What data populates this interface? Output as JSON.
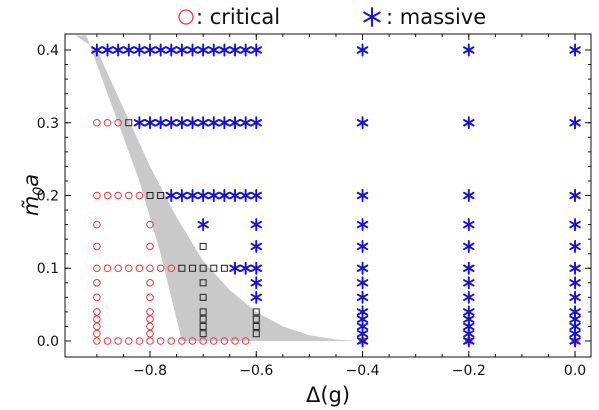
{
  "chart_data": {
    "type": "scatter",
    "title": "",
    "xlabel": "Δ(g)",
    "ylabel_main": "m̃",
    "ylabel_sub": "0",
    "ylabel_suffix": "a",
    "xlim": [
      -0.96,
      0.03
    ],
    "ylim": [
      -0.022,
      0.422
    ],
    "xticks": [
      {
        "value": -0.8,
        "label": "−0.8"
      },
      {
        "value": -0.6,
        "label": "−0.6"
      },
      {
        "value": -0.4,
        "label": "−0.4"
      },
      {
        "value": -0.2,
        "label": "−0.2"
      },
      {
        "value": 0.0,
        "label": "0.0"
      }
    ],
    "yticks": [
      {
        "value": 0.0,
        "label": "0.0"
      },
      {
        "value": 0.1,
        "label": "0.1"
      },
      {
        "value": 0.2,
        "label": "0.2"
      },
      {
        "value": 0.3,
        "label": "0.3"
      },
      {
        "value": 0.4,
        "label": "0.4"
      }
    ],
    "legend": {
      "position": "top",
      "entries": [
        {
          "marker": "circle",
          "label": " : critical"
        },
        {
          "marker": "star",
          "label": " : massive"
        }
      ]
    },
    "colors": {
      "critical": "#e8393a",
      "massive": "#1212d8",
      "intermediate": "#222222",
      "band": "#c9c9c9"
    },
    "band_region": {
      "description_upper": [
        [
          -0.94,
          0.42
        ],
        [
          -0.9,
          0.4
        ],
        [
          -0.85,
          0.32
        ],
        [
          -0.8,
          0.24
        ],
        [
          -0.75,
          0.17
        ],
        [
          -0.7,
          0.11
        ],
        [
          -0.65,
          0.07
        ],
        [
          -0.6,
          0.04
        ],
        [
          -0.55,
          0.02
        ],
        [
          -0.5,
          0.008
        ],
        [
          -0.45,
          0.002
        ],
        [
          -0.41,
          0.0
        ]
      ],
      "description_lower": [
        [
          -0.41,
          0.0
        ],
        [
          -0.5,
          0.0
        ],
        [
          -0.6,
          0.0
        ],
        [
          -0.74,
          0.0
        ],
        [
          -0.75,
          0.03
        ],
        [
          -0.78,
          0.12
        ],
        [
          -0.82,
          0.22
        ],
        [
          -0.86,
          0.3
        ],
        [
          -0.9,
          0.38
        ],
        [
          -0.92,
          0.42
        ]
      ]
    },
    "series": [
      {
        "marker": "circle",
        "role": "critical",
        "points": [
          [
            -0.9,
            0.0
          ],
          [
            -0.88,
            0.0
          ],
          [
            -0.86,
            0.0
          ],
          [
            -0.84,
            0.0
          ],
          [
            -0.82,
            0.0
          ],
          [
            -0.8,
            0.0
          ],
          [
            -0.78,
            0.0
          ],
          [
            -0.76,
            0.0
          ],
          [
            -0.74,
            0.0
          ],
          [
            -0.72,
            0.0
          ],
          [
            -0.7,
            0.0
          ],
          [
            -0.68,
            0.0
          ],
          [
            -0.66,
            0.0
          ],
          [
            -0.64,
            0.0
          ],
          [
            -0.62,
            0.0
          ],
          [
            -0.9,
            0.01
          ],
          [
            -0.9,
            0.02
          ],
          [
            -0.9,
            0.03
          ],
          [
            -0.9,
            0.04
          ],
          [
            -0.9,
            0.06
          ],
          [
            -0.9,
            0.08
          ],
          [
            -0.8,
            0.01
          ],
          [
            -0.8,
            0.02
          ],
          [
            -0.8,
            0.03
          ],
          [
            -0.8,
            0.04
          ],
          [
            -0.8,
            0.06
          ],
          [
            -0.8,
            0.08
          ],
          [
            -0.9,
            0.1
          ],
          [
            -0.88,
            0.1
          ],
          [
            -0.86,
            0.1
          ],
          [
            -0.84,
            0.1
          ],
          [
            -0.82,
            0.1
          ],
          [
            -0.8,
            0.1
          ],
          [
            -0.78,
            0.1
          ],
          [
            -0.76,
            0.1
          ],
          [
            -0.9,
            0.13
          ],
          [
            -0.8,
            0.13
          ],
          [
            -0.9,
            0.16
          ],
          [
            -0.8,
            0.16
          ],
          [
            -0.9,
            0.2
          ],
          [
            -0.88,
            0.2
          ],
          [
            -0.86,
            0.2
          ],
          [
            -0.84,
            0.2
          ],
          [
            -0.82,
            0.2
          ],
          [
            -0.9,
            0.3
          ],
          [
            -0.88,
            0.3
          ],
          [
            -0.86,
            0.3
          ],
          [
            -0.4,
            0.0
          ],
          [
            -0.2,
            0.0
          ],
          [
            0.0,
            0.0
          ]
        ]
      },
      {
        "marker": "square",
        "role": "intermediate",
        "points": [
          [
            -0.7,
            0.01
          ],
          [
            -0.7,
            0.02
          ],
          [
            -0.7,
            0.03
          ],
          [
            -0.7,
            0.04
          ],
          [
            -0.7,
            0.06
          ],
          [
            -0.7,
            0.08
          ],
          [
            -0.7,
            0.13
          ],
          [
            -0.6,
            0.01
          ],
          [
            -0.6,
            0.02
          ],
          [
            -0.6,
            0.03
          ],
          [
            -0.6,
            0.04
          ],
          [
            -0.74,
            0.1
          ],
          [
            -0.72,
            0.1
          ],
          [
            -0.7,
            0.1
          ],
          [
            -0.68,
            0.1
          ],
          [
            -0.66,
            0.1
          ],
          [
            -0.8,
            0.2
          ],
          [
            -0.78,
            0.2
          ],
          [
            -0.84,
            0.3
          ]
        ]
      },
      {
        "marker": "star",
        "role": "massive",
        "points": [
          [
            -0.9,
            0.4
          ],
          [
            -0.88,
            0.4
          ],
          [
            -0.86,
            0.4
          ],
          [
            -0.84,
            0.4
          ],
          [
            -0.82,
            0.4
          ],
          [
            -0.8,
            0.4
          ],
          [
            -0.78,
            0.4
          ],
          [
            -0.76,
            0.4
          ],
          [
            -0.74,
            0.4
          ],
          [
            -0.72,
            0.4
          ],
          [
            -0.7,
            0.4
          ],
          [
            -0.68,
            0.4
          ],
          [
            -0.66,
            0.4
          ],
          [
            -0.64,
            0.4
          ],
          [
            -0.62,
            0.4
          ],
          [
            -0.6,
            0.4
          ],
          [
            -0.82,
            0.3
          ],
          [
            -0.8,
            0.3
          ],
          [
            -0.78,
            0.3
          ],
          [
            -0.76,
            0.3
          ],
          [
            -0.74,
            0.3
          ],
          [
            -0.72,
            0.3
          ],
          [
            -0.7,
            0.3
          ],
          [
            -0.68,
            0.3
          ],
          [
            -0.66,
            0.3
          ],
          [
            -0.64,
            0.3
          ],
          [
            -0.62,
            0.3
          ],
          [
            -0.6,
            0.3
          ],
          [
            -0.76,
            0.2
          ],
          [
            -0.74,
            0.2
          ],
          [
            -0.72,
            0.2
          ],
          [
            -0.7,
            0.2
          ],
          [
            -0.68,
            0.2
          ],
          [
            -0.66,
            0.2
          ],
          [
            -0.64,
            0.2
          ],
          [
            -0.62,
            0.2
          ],
          [
            -0.6,
            0.2
          ],
          [
            -0.64,
            0.1
          ],
          [
            -0.62,
            0.1
          ],
          [
            -0.6,
            0.1
          ],
          [
            -0.7,
            0.16
          ],
          [
            -0.6,
            0.16
          ],
          [
            -0.6,
            0.13
          ],
          [
            -0.6,
            0.08
          ],
          [
            -0.6,
            0.06
          ],
          [
            -0.4,
            0.0
          ],
          [
            -0.4,
            0.01
          ],
          [
            -0.4,
            0.02
          ],
          [
            -0.4,
            0.03
          ],
          [
            -0.4,
            0.04
          ],
          [
            -0.4,
            0.06
          ],
          [
            -0.4,
            0.08
          ],
          [
            -0.4,
            0.1
          ],
          [
            -0.4,
            0.13
          ],
          [
            -0.4,
            0.16
          ],
          [
            -0.4,
            0.2
          ],
          [
            -0.4,
            0.3
          ],
          [
            -0.4,
            0.4
          ],
          [
            -0.2,
            0.0
          ],
          [
            -0.2,
            0.01
          ],
          [
            -0.2,
            0.02
          ],
          [
            -0.2,
            0.03
          ],
          [
            -0.2,
            0.04
          ],
          [
            -0.2,
            0.06
          ],
          [
            -0.2,
            0.08
          ],
          [
            -0.2,
            0.1
          ],
          [
            -0.2,
            0.13
          ],
          [
            -0.2,
            0.16
          ],
          [
            -0.2,
            0.2
          ],
          [
            -0.2,
            0.3
          ],
          [
            -0.2,
            0.4
          ],
          [
            0.0,
            0.0
          ],
          [
            0.0,
            0.01
          ],
          [
            0.0,
            0.02
          ],
          [
            0.0,
            0.03
          ],
          [
            0.0,
            0.04
          ],
          [
            0.0,
            0.06
          ],
          [
            0.0,
            0.08
          ],
          [
            0.0,
            0.1
          ],
          [
            0.0,
            0.13
          ],
          [
            0.0,
            0.16
          ],
          [
            0.0,
            0.2
          ],
          [
            0.0,
            0.3
          ],
          [
            0.0,
            0.4
          ]
        ]
      }
    ]
  }
}
